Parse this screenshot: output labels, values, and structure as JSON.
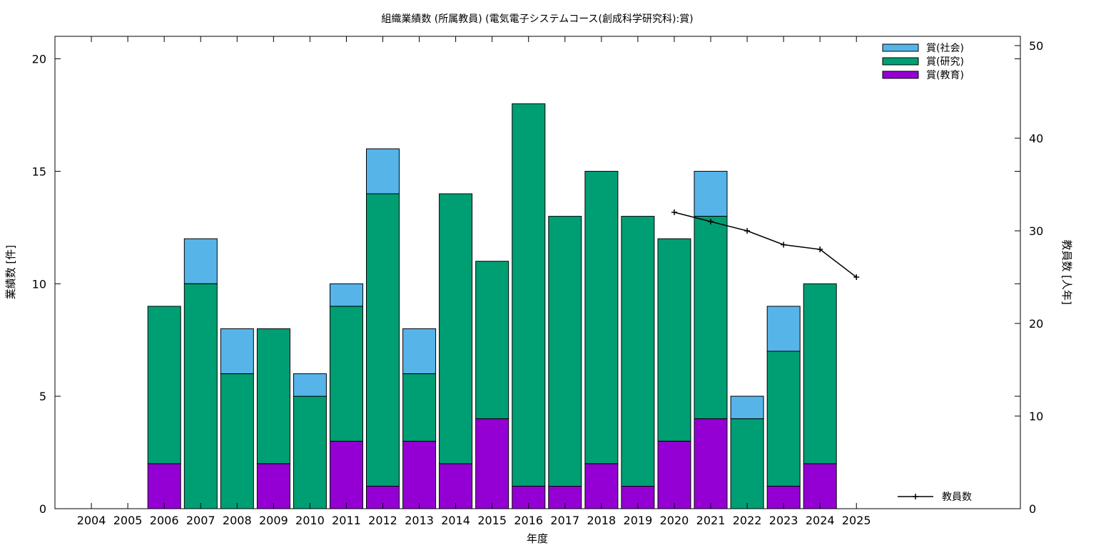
{
  "chart_data": {
    "type": "bar",
    "stacked": true,
    "title": "組織業績数 (所属教員) (電気電子システムコース(創成科学研究科):賞)",
    "xlabel": "年度",
    "ylabel": "業績数 [件]",
    "y2label": "教員数 [人年]",
    "categories": [
      "2004",
      "2005",
      "2006",
      "2007",
      "2008",
      "2009",
      "2010",
      "2011",
      "2012",
      "2013",
      "2014",
      "2015",
      "2016",
      "2017",
      "2018",
      "2019",
      "2020",
      "2021",
      "2022",
      "2023",
      "2024",
      "2025"
    ],
    "ylim": [
      0,
      21
    ],
    "y2lim": [
      0,
      51
    ],
    "yticks": [
      0,
      5,
      10,
      15,
      20
    ],
    "y2ticks": [
      0,
      10,
      20,
      30,
      40,
      50
    ],
    "series": [
      {
        "name": "賞(教育)",
        "color": "#9400d3",
        "values": [
          0,
          0,
          2,
          0,
          0,
          2,
          0,
          3,
          1,
          3,
          2,
          4,
          1,
          1,
          2,
          1,
          3,
          4,
          0,
          1,
          2,
          0
        ]
      },
      {
        "name": "賞(研究)",
        "color": "#009e73",
        "values": [
          0,
          0,
          7,
          10,
          6,
          6,
          5,
          6,
          13,
          3,
          12,
          7,
          17,
          12,
          13,
          12,
          9,
          9,
          4,
          6,
          8,
          0
        ]
      },
      {
        "name": "賞(社会)",
        "color": "#56b4e9",
        "values": [
          0,
          0,
          0,
          2,
          2,
          0,
          1,
          1,
          2,
          2,
          0,
          0,
          0,
          0,
          0,
          0,
          0,
          2,
          1,
          2,
          0,
          0
        ]
      }
    ],
    "line_series": {
      "name": "教員数",
      "axis": "y2",
      "x": [
        "2020",
        "2021",
        "2022",
        "2023",
        "2024",
        "2025"
      ],
      "values": [
        32,
        31,
        30,
        28.5,
        28,
        25
      ]
    },
    "legend_position": "top-right",
    "line_legend_position": "bottom-right",
    "grid": false
  }
}
